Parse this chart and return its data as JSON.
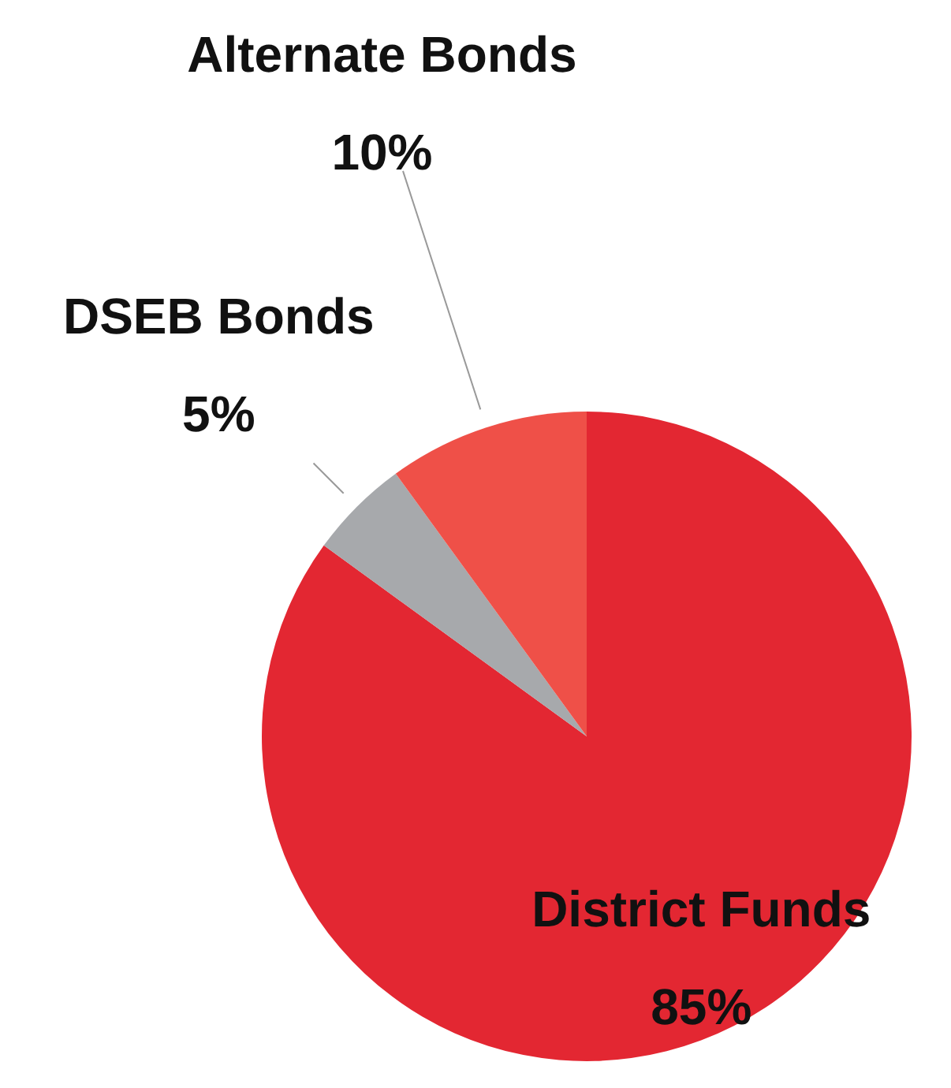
{
  "chart_data": {
    "type": "pie",
    "categories": [
      "District Funds",
      "DSEB Bonds",
      "Alternate Bonds"
    ],
    "values": [
      85,
      5,
      10
    ],
    "colors": [
      "#e32732",
      "#a7a9ac",
      "#ef5048"
    ],
    "value_labels": [
      "85%",
      "5%",
      "10%"
    ]
  }
}
